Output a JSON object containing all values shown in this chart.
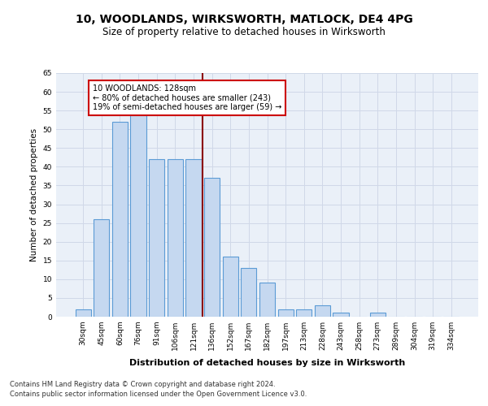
{
  "title": "10, WOODLANDS, WIRKSWORTH, MATLOCK, DE4 4PG",
  "subtitle": "Size of property relative to detached houses in Wirksworth",
  "xlabel": "Distribution of detached houses by size in Wirksworth",
  "ylabel": "Number of detached properties",
  "bar_labels": [
    "30sqm",
    "45sqm",
    "60sqm",
    "76sqm",
    "91sqm",
    "106sqm",
    "121sqm",
    "136sqm",
    "152sqm",
    "167sqm",
    "182sqm",
    "197sqm",
    "213sqm",
    "228sqm",
    "243sqm",
    "258sqm",
    "273sqm",
    "289sqm",
    "304sqm",
    "319sqm",
    "334sqm"
  ],
  "bar_values": [
    2,
    26,
    52,
    54,
    42,
    42,
    42,
    37,
    16,
    13,
    9,
    2,
    2,
    3,
    1,
    0,
    1,
    0,
    0,
    0,
    0
  ],
  "bar_color": "#c5d8f0",
  "bar_edge_color": "#5b9bd5",
  "vline_color": "#8b0000",
  "annotation_text": "10 WOODLANDS: 128sqm\n← 80% of detached houses are smaller (243)\n19% of semi-detached houses are larger (59) →",
  "annotation_box_color": "#ffffff",
  "annotation_box_edge": "#cc0000",
  "ylim": [
    0,
    65
  ],
  "yticks": [
    0,
    5,
    10,
    15,
    20,
    25,
    30,
    35,
    40,
    45,
    50,
    55,
    60,
    65
  ],
  "grid_color": "#d0d8e8",
  "background_color": "#eaf0f8",
  "footer1": "Contains HM Land Registry data © Crown copyright and database right 2024.",
  "footer2": "Contains public sector information licensed under the Open Government Licence v3.0.",
  "title_fontsize": 10,
  "subtitle_fontsize": 8.5,
  "xlabel_fontsize": 8,
  "ylabel_fontsize": 7.5,
  "tick_fontsize": 6.5,
  "annotation_fontsize": 7,
  "footer_fontsize": 6
}
